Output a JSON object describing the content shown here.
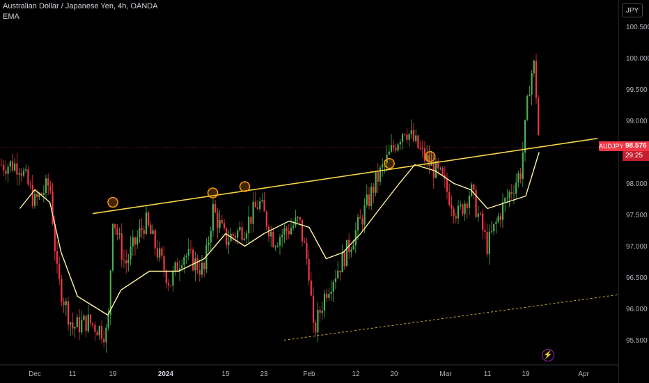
{
  "header": {
    "title": "Australian Dollar / Japanese Yen, 4h, OANDA",
    "indicator": "EMA"
  },
  "currency_button": "JPY",
  "price_tag": {
    "symbol": "AUDJPY",
    "price": "98.576",
    "countdown": "29:25"
  },
  "colors": {
    "background": "#000000",
    "up_candle": "#4caf50",
    "down_candle": "#f23645",
    "ema": "#fff59d",
    "trendline": "#f5d547",
    "touch_circle": "#ff9800",
    "price_tag": "#f23645"
  },
  "icons": {
    "event_marker": "lightning-icon"
  },
  "chart_data": {
    "type": "candlestick",
    "title": "Australian Dollar / Japanese Yen, 4h, OANDA",
    "xlabel": "",
    "ylabel": "",
    "y_ticks": [
      "100.500",
      "100.000",
      "99.500",
      "99.000",
      "98.500",
      "98.000",
      "97.500",
      "97.000",
      "96.500",
      "96.000",
      "95.500"
    ],
    "x_ticks": [
      {
        "label": "Dec",
        "bold": false
      },
      {
        "label": "11",
        "bold": false
      },
      {
        "label": "19",
        "bold": false
      },
      {
        "label": "2024",
        "bold": true
      },
      {
        "label": "15",
        "bold": false
      },
      {
        "label": "23",
        "bold": false
      },
      {
        "label": "Feb",
        "bold": false
      },
      {
        "label": "12",
        "bold": false
      },
      {
        "label": "20",
        "bold": false
      },
      {
        "label": "Mar",
        "bold": false
      },
      {
        "label": "11",
        "bold": false
      },
      {
        "label": "19",
        "bold": false
      },
      {
        "label": "Apr",
        "bold": false
      }
    ],
    "ylim": [
      95.1,
      100.75
    ],
    "last_price": 98.576,
    "series_close_approx": [
      {
        "date": "Nov 27",
        "close": 98.3
      },
      {
        "date": "Dec 1",
        "close": 97.7
      },
      {
        "date": "Dec 5",
        "close": 98.0
      },
      {
        "date": "Dec 7",
        "close": 96.5
      },
      {
        "date": "Dec 11",
        "close": 95.7
      },
      {
        "date": "Dec 14",
        "close": 95.8
      },
      {
        "date": "Dec 18",
        "close": 95.6
      },
      {
        "date": "Dec 19",
        "close": 97.5
      },
      {
        "date": "Dec 22",
        "close": 96.7
      },
      {
        "date": "Dec 27",
        "close": 97.4
      },
      {
        "date": "Jan 2",
        "close": 96.4
      },
      {
        "date": "Jan 5",
        "close": 96.9
      },
      {
        "date": "Jan 10",
        "close": 96.6
      },
      {
        "date": "Jan 12",
        "close": 97.6
      },
      {
        "date": "Jan 15",
        "close": 97.1
      },
      {
        "date": "Jan 19",
        "close": 97.3
      },
      {
        "date": "Jan 22",
        "close": 97.7
      },
      {
        "date": "Jan 25",
        "close": 97.1
      },
      {
        "date": "Jan 30",
        "close": 97.4
      },
      {
        "date": "Feb 1",
        "close": 96.6
      },
      {
        "date": "Feb 2",
        "close": 95.6
      },
      {
        "date": "Feb 5",
        "close": 96.3
      },
      {
        "date": "Feb 9",
        "close": 96.8
      },
      {
        "date": "Feb 13",
        "close": 97.4
      },
      {
        "date": "Feb 16",
        "close": 98.0
      },
      {
        "date": "Feb 20",
        "close": 98.6
      },
      {
        "date": "Feb 22",
        "close": 98.9
      },
      {
        "date": "Feb 26",
        "close": 98.4
      },
      {
        "date": "Feb 29",
        "close": 98.1
      },
      {
        "date": "Mar 4",
        "close": 97.5
      },
      {
        "date": "Mar 7",
        "close": 97.9
      },
      {
        "date": "Mar 11",
        "close": 97.0
      },
      {
        "date": "Mar 14",
        "close": 97.6
      },
      {
        "date": "Mar 18",
        "close": 98.2
      },
      {
        "date": "Mar 20",
        "close": 99.7
      },
      {
        "date": "Mar 21",
        "close": 99.9
      },
      {
        "date": "Mar 22",
        "close": 98.58
      }
    ],
    "ema": [
      {
        "date": "Nov 27",
        "value": 97.6
      },
      {
        "date": "Dec 1",
        "value": 97.9
      },
      {
        "date": "Dec 5",
        "value": 97.7
      },
      {
        "date": "Dec 8",
        "value": 96.9
      },
      {
        "date": "Dec 12",
        "value": 96.2
      },
      {
        "date": "Dec 18",
        "value": 95.9
      },
      {
        "date": "Dec 21",
        "value": 96.3
      },
      {
        "date": "Dec 28",
        "value": 96.6
      },
      {
        "date": "Jan 4",
        "value": 96.6
      },
      {
        "date": "Jan 10",
        "value": 96.8
      },
      {
        "date": "Jan 15",
        "value": 97.2
      },
      {
        "date": "Jan 19",
        "value": 97.0
      },
      {
        "date": "Jan 23",
        "value": 97.2
      },
      {
        "date": "Jan 28",
        "value": 97.4
      },
      {
        "date": "Feb 1",
        "value": 97.3
      },
      {
        "date": "Feb 5",
        "value": 96.8
      },
      {
        "date": "Feb 9",
        "value": 96.9
      },
      {
        "date": "Feb 13",
        "value": 97.2
      },
      {
        "date": "Feb 17",
        "value": 97.6
      },
      {
        "date": "Feb 21",
        "value": 98.0
      },
      {
        "date": "Feb 24",
        "value": 98.3
      },
      {
        "date": "Feb 28",
        "value": 98.2
      },
      {
        "date": "Mar 3",
        "value": 98.0
      },
      {
        "date": "Mar 7",
        "value": 97.9
      },
      {
        "date": "Mar 11",
        "value": 97.6
      },
      {
        "date": "Mar 15",
        "value": 97.7
      },
      {
        "date": "Mar 19",
        "value": 97.8
      },
      {
        "date": "Mar 22",
        "value": 98.5
      }
    ],
    "trendlines": [
      {
        "name": "resistance",
        "style": "solid",
        "from": {
          "date": "Dec 15",
          "value": 97.52
        },
        "to": {
          "date": "Mar 22",
          "value": 98.58
        }
      },
      {
        "name": "support",
        "style": "dashed",
        "from": {
          "date": "Jan 27",
          "value": 95.5
        },
        "to": {
          "date": "Apr 1",
          "value": 96.15
        }
      }
    ],
    "touch_points": [
      {
        "date": "Dec 19",
        "value": 97.7
      },
      {
        "date": "Jan 12",
        "value": 97.85
      },
      {
        "date": "Jan 19",
        "value": 97.95
      },
      {
        "date": "Feb 19",
        "value": 98.32
      },
      {
        "date": "Feb 27",
        "value": 98.43
      }
    ],
    "grid": false,
    "legend": "top-left"
  }
}
